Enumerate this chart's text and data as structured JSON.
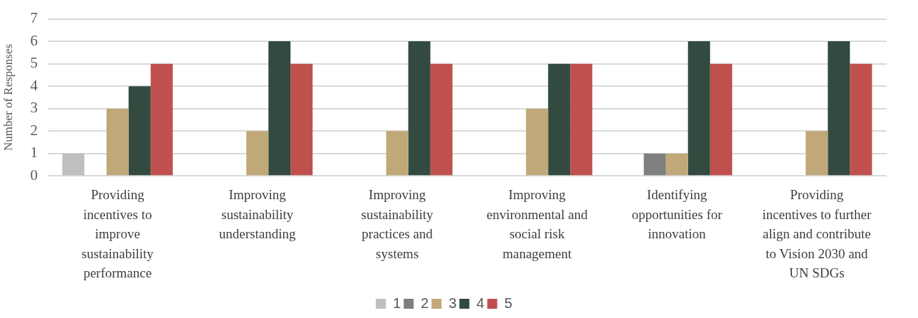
{
  "chart_data": {
    "type": "bar",
    "ylabel": "Number of Responses",
    "categories": [
      "Providing incentives to improve sustainability performance",
      "Improving sustainability understanding",
      "Improving sustainability practices and systems",
      "Improving environmental and social risk management",
      "Identifying opportunities for innovation",
      "Providing incentives to further align and contribute to Vision 2030 and UN SDGs"
    ],
    "series": [
      {
        "name": "1",
        "color": "#bfbfbf",
        "values": [
          1,
          0,
          0,
          0,
          0,
          0
        ]
      },
      {
        "name": "2",
        "color": "#7f7f7f",
        "values": [
          0,
          0,
          0,
          0,
          1,
          0
        ]
      },
      {
        "name": "3",
        "color": "#c0a878",
        "values": [
          3,
          2,
          2,
          3,
          1,
          2
        ]
      },
      {
        "name": "4",
        "color": "#324a40",
        "values": [
          4,
          6,
          6,
          5,
          6,
          6
        ]
      },
      {
        "name": "5",
        "color": "#c0504d",
        "values": [
          5,
          5,
          5,
          5,
          5,
          5
        ]
      }
    ],
    "ylim": [
      0,
      7
    ],
    "yticks": [
      0,
      1,
      2,
      3,
      4,
      5,
      6,
      7
    ],
    "grid": "y",
    "legend": "bottom"
  }
}
